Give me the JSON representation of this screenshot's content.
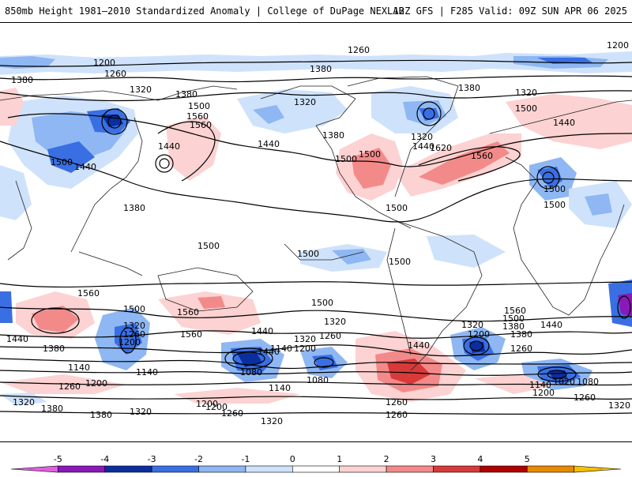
{
  "header": {
    "left_title": "850mb Height 1981–2010 Standardized Anomaly | College of DuPage NEXLAB",
    "right_title": "12Z GFS | F285 Valid: 09Z SUN APR 06 2025"
  },
  "legend": {
    "ticks": [
      "-5",
      "-4",
      "-3",
      "-2",
      "-1",
      "0",
      "1",
      "2",
      "3",
      "4",
      "5"
    ],
    "colors": [
      "#e060e0",
      "#8b18b8",
      "#0b2e9e",
      "#3a6fe3",
      "#8eb7f3",
      "#cfe2fb",
      "#ffffff",
      "#fcd2d2",
      "#f38a8a",
      "#d83a3a",
      "#b00000",
      "#e88a00",
      "#f5c000"
    ]
  },
  "contour_labels": [
    {
      "text": "1260"
    },
    {
      "text": "1200"
    },
    {
      "text": "1200"
    },
    {
      "text": "1260"
    },
    {
      "text": "1380"
    },
    {
      "text": "1320"
    },
    {
      "text": "1380"
    },
    {
      "text": "1380"
    },
    {
      "text": "1320"
    },
    {
      "text": "1380"
    },
    {
      "text": "1320"
    },
    {
      "text": "1500"
    },
    {
      "text": "1560"
    },
    {
      "text": "1440"
    },
    {
      "text": "1440"
    },
    {
      "text": "1380"
    },
    {
      "text": "1500"
    },
    {
      "text": "1560"
    },
    {
      "text": "1620"
    },
    {
      "text": "1560"
    },
    {
      "text": "1440"
    },
    {
      "text": "1320"
    },
    {
      "text": "1440"
    },
    {
      "text": "1500"
    },
    {
      "text": "1500"
    },
    {
      "text": "1500"
    },
    {
      "text": "1440"
    },
    {
      "text": "1380"
    },
    {
      "text": "1500"
    },
    {
      "text": "1500"
    },
    {
      "text": "1500"
    },
    {
      "text": "1500"
    },
    {
      "text": "1500"
    },
    {
      "text": "1500"
    },
    {
      "text": "1560"
    },
    {
      "text": "1500"
    },
    {
      "text": "1560"
    },
    {
      "text": "1320"
    },
    {
      "text": "1260"
    },
    {
      "text": "1200"
    },
    {
      "text": "1440"
    },
    {
      "text": "1380"
    },
    {
      "text": "1140"
    },
    {
      "text": "1140"
    },
    {
      "text": "1200"
    },
    {
      "text": "1260"
    },
    {
      "text": "1320"
    },
    {
      "text": "1380"
    },
    {
      "text": "1440"
    },
    {
      "text": "1500"
    },
    {
      "text": "1560"
    },
    {
      "text": "1440"
    },
    {
      "text": "1320"
    },
    {
      "text": "1200"
    },
    {
      "text": "1140"
    },
    {
      "text": "1080"
    },
    {
      "text": "1080"
    },
    {
      "text": "1140"
    },
    {
      "text": "1260"
    },
    {
      "text": "1320"
    },
    {
      "text": "1380"
    },
    {
      "text": "1200"
    },
    {
      "text": "1260"
    },
    {
      "text": "1320"
    },
    {
      "text": "1200"
    },
    {
      "text": "1320"
    },
    {
      "text": "1380"
    },
    {
      "text": "1440"
    },
    {
      "text": "1500"
    },
    {
      "text": "1560"
    },
    {
      "text": "1440"
    },
    {
      "text": "1380"
    },
    {
      "text": "1260"
    },
    {
      "text": "1200"
    },
    {
      "text": "1140"
    },
    {
      "text": "1020"
    },
    {
      "text": "1080"
    },
    {
      "text": "1200"
    },
    {
      "text": "1260"
    },
    {
      "text": "1320"
    },
    {
      "text": "1380"
    },
    {
      "text": "1260"
    },
    {
      "text": "1200"
    },
    {
      "text": "1320"
    },
    {
      "text": "1260"
    },
    {
      "text": "1320"
    }
  ]
}
